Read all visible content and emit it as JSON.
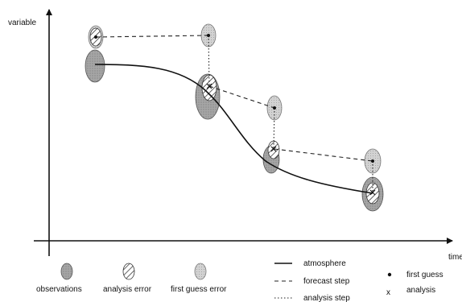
{
  "axes": {
    "y_label": "variable",
    "x_label": "time"
  },
  "legend": {
    "observations": "observations",
    "analysis_error": "analysis error",
    "first_guess_error": "first guess error",
    "atmosphere": "atmosphere",
    "forecast_step": "forecast step",
    "analysis_step": "analysis step",
    "first_guess": "first guess",
    "analysis": "analysis",
    "first_guess_marker": "•",
    "analysis_marker": "x"
  },
  "colors": {
    "ink": "#111111",
    "observation_fill": "#a9a9a9",
    "first_guess_fill": "#d0d0d0"
  }
}
